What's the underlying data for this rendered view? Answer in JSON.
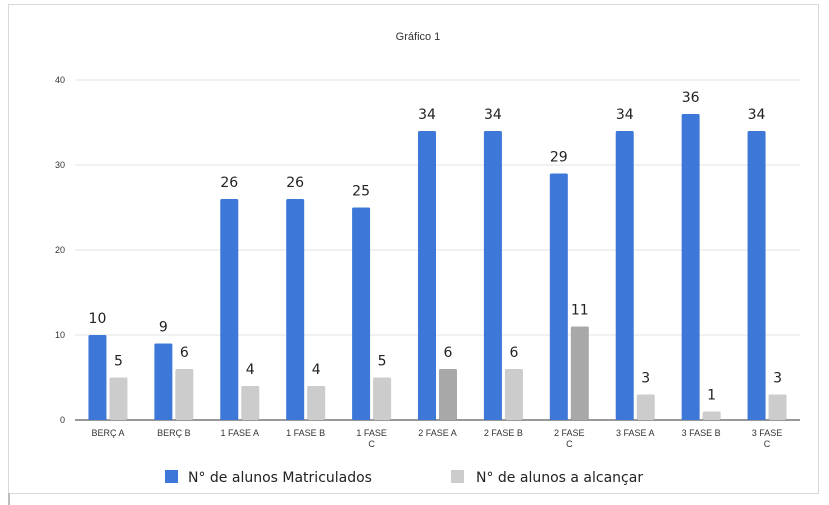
{
  "chart_data": {
    "type": "bar",
    "title": "Gráfico 1",
    "xlabel": "",
    "ylabel": "",
    "ylim": [
      0,
      40
    ],
    "yticks": [
      "0",
      "10",
      "20",
      "30",
      "40"
    ],
    "grid": true,
    "legend_position": "bottom",
    "categories": [
      [
        "BERÇ A"
      ],
      [
        "BERÇ B"
      ],
      [
        "1 FASE A"
      ],
      [
        "1 FASE B"
      ],
      [
        "1 FASE",
        "C"
      ],
      [
        "2 FASE A"
      ],
      [
        "2 FASE B"
      ],
      [
        "2 FASE",
        "C"
      ],
      [
        "3 FASE A"
      ],
      [
        "3 FASE B"
      ],
      [
        "3 FASE",
        "C"
      ]
    ],
    "series": [
      {
        "name": "N° de alunos Matriculados",
        "color": "#3d78d8",
        "values": [
          10,
          9,
          26,
          26,
          25,
          34,
          34,
          29,
          34,
          36,
          34
        ],
        "labels": [
          "10",
          "9",
          "26",
          "26",
          "25",
          "34",
          "34",
          "29",
          "34",
          "36",
          "34"
        ]
      },
      {
        "name": "N° de alunos a alcançar",
        "color": "#cccccc",
        "values": [
          5,
          6,
          4,
          4,
          5,
          6,
          6,
          11,
          3,
          1,
          3
        ],
        "labels": [
          "5",
          "6",
          "4",
          "4",
          "5",
          "6",
          "6",
          "11",
          "3",
          "1",
          "3"
        ]
      }
    ],
    "highlighted_second_series_color": "#a8a8a8"
  }
}
